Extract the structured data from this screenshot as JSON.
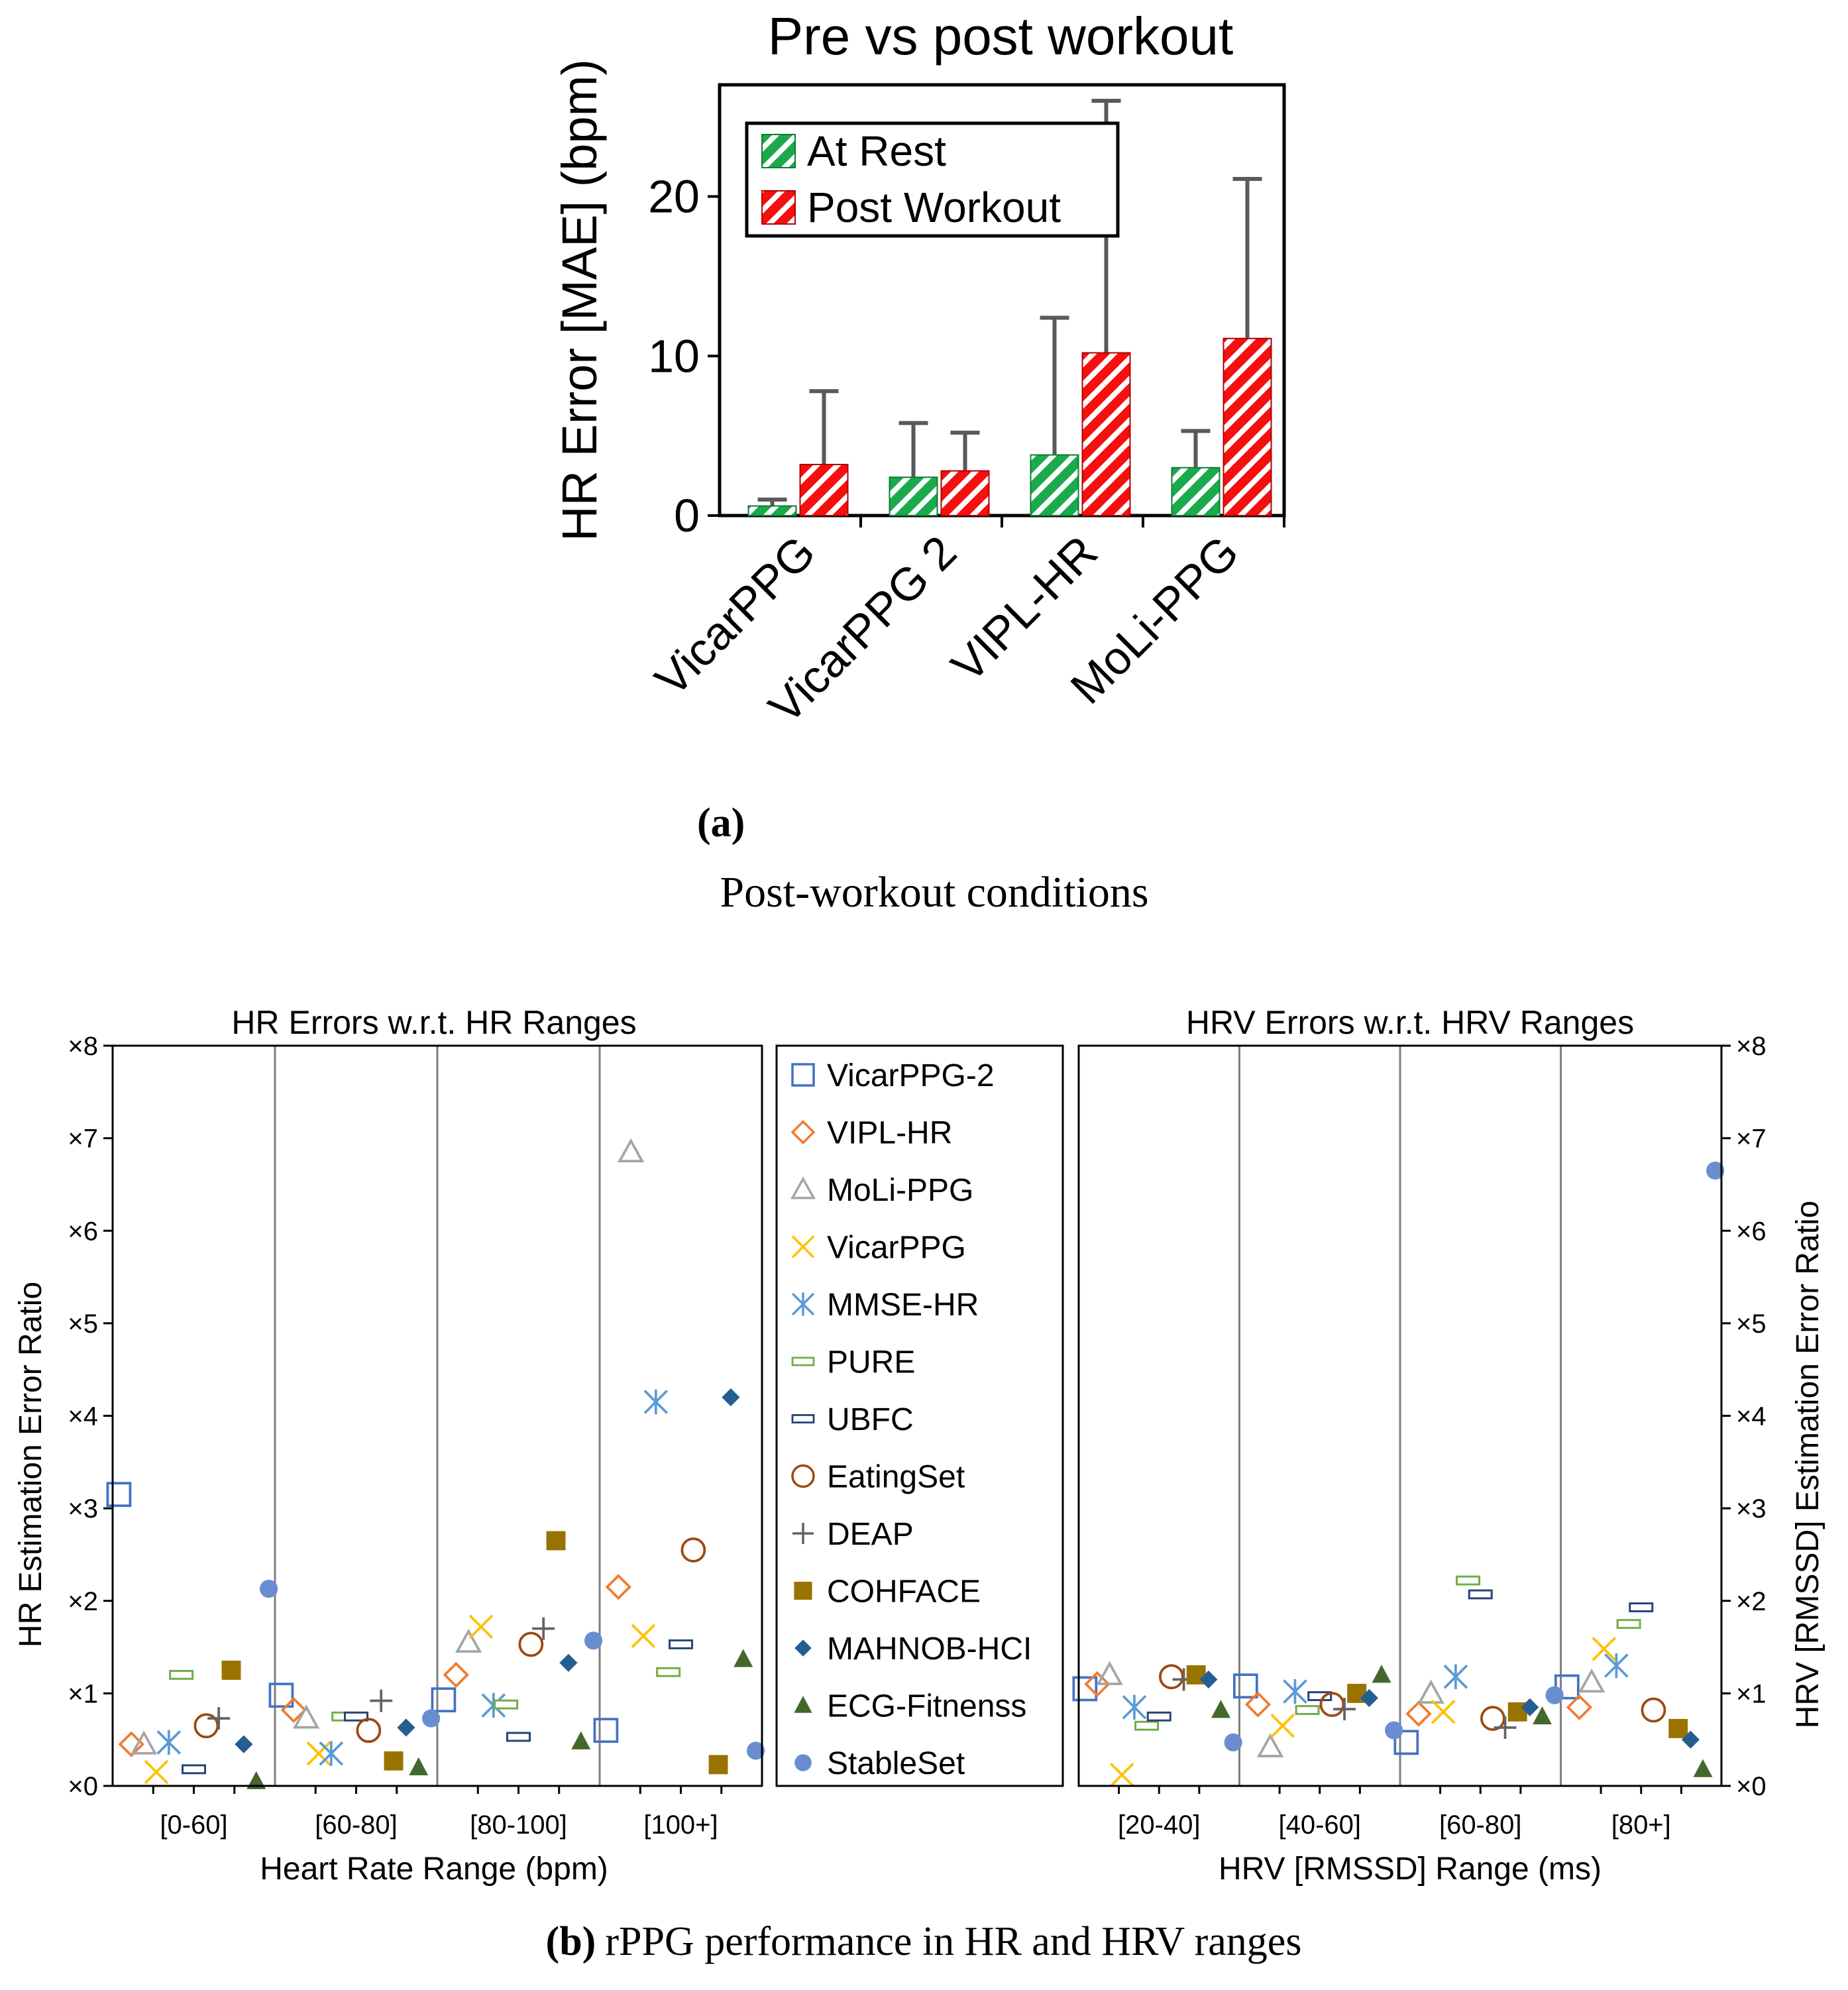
{
  "caption_a": {
    "label": "(a)",
    "text": "Post-workout conditions"
  },
  "caption_b": {
    "label": "(b)",
    "text": "rPPG performance in HR and HRV ranges"
  },
  "chart_data": [
    {
      "type": "bar",
      "title": "Pre vs post workout",
      "xlabel": "",
      "ylabel": "HR Error [MAE] (bpm)",
      "ylim": [
        0,
        27
      ],
      "yticks": [
        0,
        10,
        20
      ],
      "grid": false,
      "legend": "top-left",
      "categories": [
        "VicarPPG",
        "VicarPPG 2",
        "VIPL-HR",
        "MoLi-PPG"
      ],
      "series": [
        {
          "name": "At Rest",
          "color": "#1aaa4b",
          "values": [
            0.6,
            2.4,
            3.8,
            3.0
          ],
          "error": [
            0.4,
            3.4,
            8.6,
            2.3
          ]
        },
        {
          "name": "Post Workout",
          "color": "#f50f0f",
          "values": [
            3.2,
            2.8,
            10.2,
            11.1
          ],
          "error": [
            4.6,
            2.4,
            15.8,
            10.0
          ]
        }
      ]
    },
    {
      "type": "scatter",
      "title": "HR Errors w.r.t. HR Ranges",
      "xlabel": "Heart Rate Range (bpm)",
      "ylabel": "HR Estimation Error Ratio",
      "categories": [
        "[0-60]",
        "[60-80]",
        "[80-100]",
        "[100+]"
      ],
      "ylim": [
        0,
        8
      ],
      "yticks": [
        "×0",
        "×1",
        "×2",
        "×3",
        "×4",
        "×5",
        "×6",
        "×7",
        "×8"
      ],
      "series": [
        {
          "name": "VicarPPG-2",
          "values": [
            3.15,
            0.98,
            0.93,
            0.6
          ]
        },
        {
          "name": "VIPL-HR",
          "values": [
            0.45,
            0.82,
            1.2,
            2.15
          ]
        },
        {
          "name": "MoLi-PPG",
          "values": [
            0.45,
            0.73,
            1.55,
            6.85
          ]
        },
        {
          "name": "VicarPPG",
          "values": [
            0.15,
            0.35,
            1.72,
            1.62
          ]
        },
        {
          "name": "MMSE-HR",
          "values": [
            0.47,
            0.35,
            0.87,
            4.15
          ]
        },
        {
          "name": "PURE",
          "values": [
            1.2,
            0.75,
            0.88,
            1.23
          ]
        },
        {
          "name": "UBFC",
          "values": [
            0.18,
            0.75,
            0.53,
            1.53
          ]
        },
        {
          "name": "EatingSet",
          "values": [
            0.65,
            0.6,
            1.53,
            2.55
          ]
        },
        {
          "name": "DEAP",
          "values": [
            0.73,
            0.92,
            1.7,
            null
          ]
        },
        {
          "name": "COHFACE",
          "values": [
            1.25,
            0.27,
            2.65,
            0.23
          ]
        },
        {
          "name": "MAHNOB-HCI",
          "values": [
            0.45,
            0.63,
            1.33,
            4.2
          ]
        },
        {
          "name": "ECG-Fitnenss",
          "values": [
            0.05,
            0.2,
            0.48,
            1.37
          ]
        },
        {
          "name": "StableSet",
          "values": [
            2.13,
            0.73,
            1.57,
            0.38
          ]
        }
      ]
    },
    {
      "type": "scatter",
      "title": "HRV Errors w.r.t. HRV Ranges",
      "xlabel": "HRV [RMSSD] Range (ms)",
      "ylabel": "HRV [RMSSD] Estimation Error Ratio",
      "categories": [
        "[20-40]",
        "[40-60]",
        "[60-80]",
        "[80+]"
      ],
      "ylim": [
        0,
        8
      ],
      "yticks": [
        "×0",
        "×1",
        "×2",
        "×3",
        "×4",
        "×5",
        "×6",
        "×7",
        "×8"
      ],
      "series": [
        {
          "name": "VicarPPG-2",
          "values": [
            1.05,
            1.08,
            0.47,
            1.07
          ]
        },
        {
          "name": "VIPL-HR",
          "values": [
            1.1,
            0.88,
            0.78,
            0.85
          ]
        },
        {
          "name": "MoLi-PPG",
          "values": [
            1.2,
            0.42,
            1.0,
            1.12
          ]
        },
        {
          "name": "VicarPPG",
          "values": [
            0.12,
            0.65,
            0.8,
            1.48
          ]
        },
        {
          "name": "MMSE-HR",
          "values": [
            0.85,
            1.02,
            1.18,
            1.3
          ]
        },
        {
          "name": "PURE",
          "values": [
            0.65,
            0.82,
            2.22,
            1.75
          ]
        },
        {
          "name": "UBFC",
          "values": [
            0.75,
            0.97,
            2.07,
            1.93
          ]
        },
        {
          "name": "EatingSet",
          "values": [
            1.18,
            0.88,
            0.73,
            0.82
          ]
        },
        {
          "name": "DEAP",
          "values": [
            1.15,
            0.83,
            0.63,
            null
          ]
        },
        {
          "name": "COHFACE",
          "values": [
            1.2,
            1.0,
            0.8,
            0.62
          ]
        },
        {
          "name": "MAHNOB-HCI",
          "values": [
            1.15,
            0.95,
            0.85,
            0.5
          ]
        },
        {
          "name": "ECG-Fitnenss",
          "values": [
            0.82,
            1.2,
            0.75,
            0.18
          ]
        },
        {
          "name": "StableSet",
          "values": [
            0.47,
            0.6,
            0.98,
            6.65
          ]
        }
      ]
    }
  ],
  "legend": {
    "items": [
      {
        "name": "VicarPPG-2",
        "marker": "square-open",
        "color": "#4472c4"
      },
      {
        "name": "VIPL-HR",
        "marker": "diamond-open",
        "color": "#ed7d31"
      },
      {
        "name": "MoLi-PPG",
        "marker": "triangle-open",
        "color": "#a5a5a5"
      },
      {
        "name": "VicarPPG",
        "marker": "x",
        "color": "#ffc000"
      },
      {
        "name": "MMSE-HR",
        "marker": "asterisk",
        "color": "#5b9bd5"
      },
      {
        "name": "PURE",
        "marker": "dash",
        "color": "#70ad47"
      },
      {
        "name": "UBFC",
        "marker": "dash",
        "color": "#264478"
      },
      {
        "name": "EatingSet",
        "marker": "circle-open",
        "color": "#9e480e"
      },
      {
        "name": "DEAP",
        "marker": "plus",
        "color": "#636363"
      },
      {
        "name": "COHFACE",
        "marker": "square-filled",
        "color": "#997300"
      },
      {
        "name": "MAHNOB-HCI",
        "marker": "diamond-filled",
        "color": "#255e91"
      },
      {
        "name": "ECG-Fitnenss",
        "marker": "triangle-filled",
        "color": "#43682b"
      },
      {
        "name": "StableSet",
        "marker": "circle-filled",
        "color": "#698ed0"
      }
    ]
  }
}
